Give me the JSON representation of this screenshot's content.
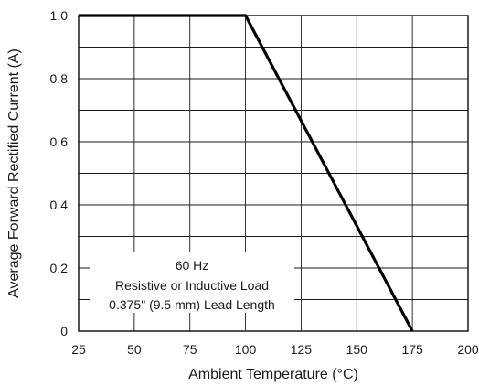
{
  "chart_data": {
    "type": "line",
    "title": "",
    "xlabel": "Ambient Temperature (°C)",
    "ylabel": "Average Forward Rectified Current (A)",
    "xlim": [
      25,
      200
    ],
    "ylim": [
      0,
      1.0
    ],
    "x_ticks": [
      "25",
      "50",
      "75",
      "100",
      "125",
      "150",
      "175",
      "200"
    ],
    "y_ticks": [
      "0",
      "0.2",
      "0.4",
      "0.6",
      "0.8",
      "1.0"
    ],
    "x_grid_step": 25,
    "y_grid_step": 0.1,
    "grid": true,
    "series": [
      {
        "x": [
          25,
          100,
          175
        ],
        "y": [
          1.0,
          1.0,
          0.0
        ]
      }
    ],
    "annotation": {
      "lines": [
        "60 Hz",
        "Resistive or Inductive Load",
        "0.375\" (9.5 mm) Lead Length"
      ],
      "placement": "bottom-left"
    }
  }
}
